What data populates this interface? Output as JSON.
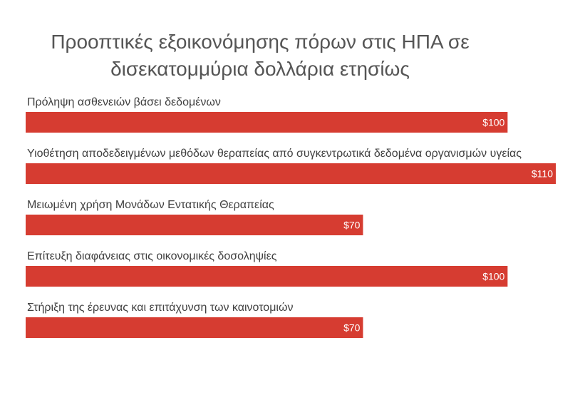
{
  "chart_data": {
    "type": "bar",
    "orientation": "horizontal",
    "title_lines": [
      "Προοπτικές εξοικονόμησης πόρων στις ΗΠΑ σε",
      "δισεκατομμύρια δολλάρια ετησίως"
    ],
    "categories": [
      "Πρόληψη ασθενειών βάσει δεδομένων",
      "Υιοθέτηση αποδεδειγμένων μεθόδων θεραπείας από συγκεντρωτικά δεδομένα οργανισμών υγείας",
      "Μειωμένη χρήση Μονάδων Εντατικής Θεραπείας",
      "Επίτευξη διαφάνειας στις οικονομικές δοσοληψίες",
      "Στήριξη της έρευνας και επιτάχυνση των καινοτομιών"
    ],
    "values": [
      100,
      110,
      70,
      100,
      70
    ],
    "value_labels": [
      "$100",
      "$110",
      "$70",
      "$100",
      "$70"
    ],
    "xlim": [
      0,
      110
    ],
    "bar_color": "#d63c31",
    "grid": false,
    "legend": "none"
  }
}
